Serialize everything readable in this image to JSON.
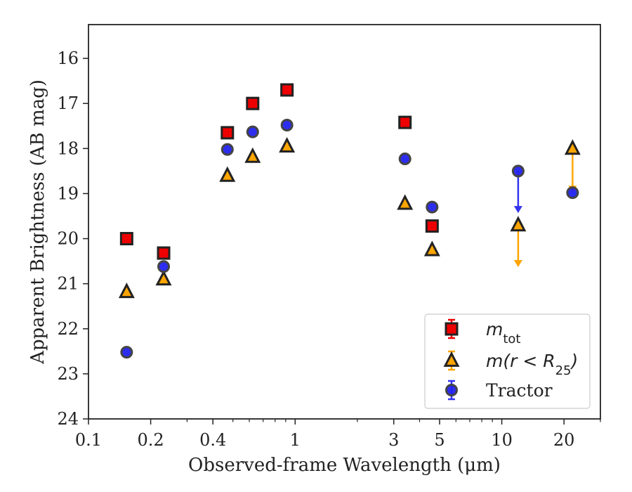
{
  "chart_data": {
    "type": "scatter",
    "xlabel": "Observed-frame Wavelength (μm)",
    "ylabel": "Apparent Brightness (AB mag)",
    "xscale": "log",
    "xlim": [
      0.1,
      30
    ],
    "ylim": [
      24,
      15.25
    ],
    "y_inverted": true,
    "x_ticks": [
      {
        "value": 0.1,
        "label": "0.1"
      },
      {
        "value": 0.2,
        "label": "0.2"
      },
      {
        "value": 0.4,
        "label": "0.4"
      },
      {
        "value": 1,
        "label": "1"
      },
      {
        "value": 3,
        "label": "3"
      },
      {
        "value": 5,
        "label": "5"
      },
      {
        "value": 10,
        "label": "10"
      },
      {
        "value": 20,
        "label": "20"
      }
    ],
    "x_minor_ticks": [
      0.3,
      0.5,
      0.6,
      0.7,
      0.8,
      0.9,
      2,
      4,
      6,
      7,
      8,
      9,
      30
    ],
    "y_ticks": [
      16,
      17,
      18,
      19,
      20,
      21,
      22,
      23,
      24
    ],
    "legend_position": "lower-right",
    "series": [
      {
        "name": "m_tot",
        "legend_label": {
          "base": "m",
          "sub": "tot"
        },
        "marker": "square",
        "color": "#ee0000",
        "edge_color": "#222222",
        "error_color": "#ee0000",
        "points": [
          {
            "x": 0.153,
            "y": 20.0
          },
          {
            "x": 0.231,
            "y": 20.32
          },
          {
            "x": 0.47,
            "y": 17.65
          },
          {
            "x": 0.623,
            "y": 17.0
          },
          {
            "x": 0.913,
            "y": 16.7
          },
          {
            "x": 3.4,
            "y": 17.42
          },
          {
            "x": 4.6,
            "y": 19.72
          }
        ]
      },
      {
        "name": "m(r < R25)",
        "legend_label": {
          "base": "m(r < R",
          "sub": "25",
          "close": ")"
        },
        "marker": "triangle",
        "color": "#ffa500",
        "edge_color": "#222222",
        "error_color": "#ffa500",
        "points": [
          {
            "x": 0.153,
            "y": 21.18
          },
          {
            "x": 0.231,
            "y": 20.9
          },
          {
            "x": 0.47,
            "y": 18.6
          },
          {
            "x": 0.623,
            "y": 18.18
          },
          {
            "x": 0.913,
            "y": 17.95
          },
          {
            "x": 3.4,
            "y": 19.22
          },
          {
            "x": 4.6,
            "y": 20.25
          },
          {
            "x": 12.0,
            "y": 19.7,
            "upper_limit": true,
            "arrow_to": 20.6
          },
          {
            "x": 22.0,
            "y": 18.0,
            "upper_limit": true,
            "arrow_to": 18.95
          }
        ]
      },
      {
        "name": "Tractor",
        "marker": "circle",
        "color": "#2222ee",
        "edge_color": "#444444",
        "error_color": "#3333ee",
        "points": [
          {
            "x": 0.153,
            "y": 22.52
          },
          {
            "x": 0.231,
            "y": 20.62
          },
          {
            "x": 0.47,
            "y": 18.02
          },
          {
            "x": 0.623,
            "y": 17.63
          },
          {
            "x": 0.913,
            "y": 17.48
          },
          {
            "x": 3.4,
            "y": 18.23
          },
          {
            "x": 4.6,
            "y": 19.3
          },
          {
            "x": 12.0,
            "y": 18.5,
            "upper_limit": true,
            "arrow_to": 19.4
          },
          {
            "x": 22.0,
            "y": 18.98
          }
        ]
      }
    ],
    "legend": [
      {
        "series": "m_tot"
      },
      {
        "series": "m(r < R25)"
      },
      {
        "series": "Tractor",
        "text": "Tractor"
      }
    ]
  }
}
